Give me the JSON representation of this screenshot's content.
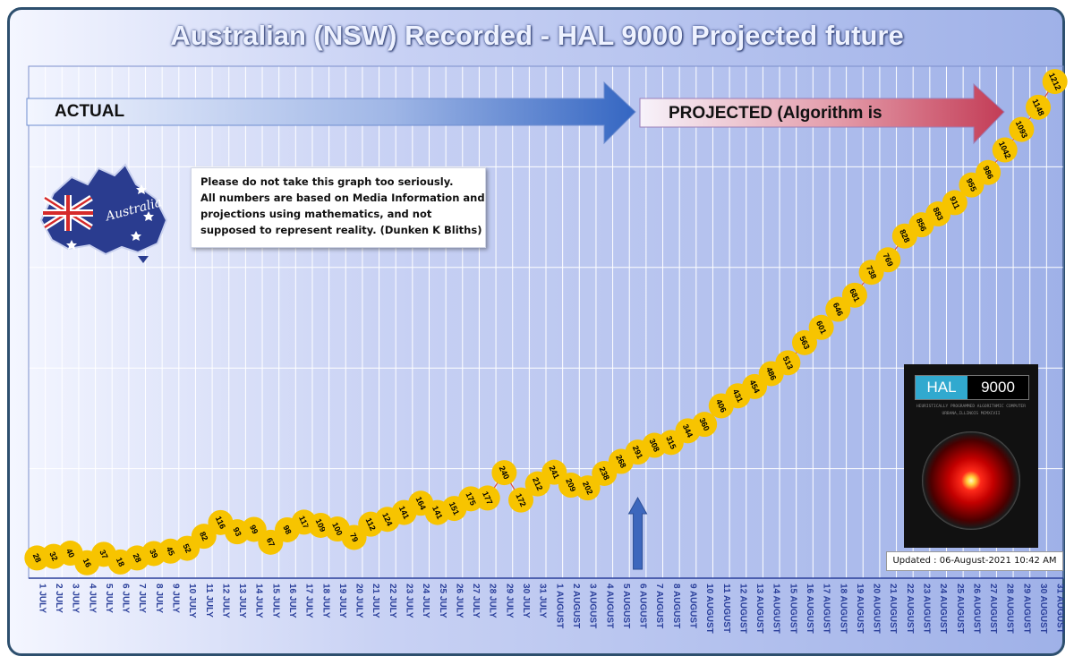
{
  "chart_data": {
    "type": "line",
    "title": "Australian (NSW) Recorded - HAL 9000 Projected future",
    "categories": [
      "1 JULY",
      "2 JULY",
      "3 JULY",
      "4 JULY",
      "5 JULY",
      "6 JULY",
      "7 JULY",
      "8 JULY",
      "9 JULY",
      "10 JULY",
      "11 JULY",
      "12 JULY",
      "13 JULY",
      "14 JULY",
      "15 JULY",
      "16 JULY",
      "17 JULY",
      "18 JULY",
      "19 JULY",
      "20 JULY",
      "21 JULY",
      "22 JULY",
      "23 JULY",
      "24 JULY",
      "25 JULY",
      "26 JULY",
      "27 JULY",
      "28 JULY",
      "29 JULY",
      "30 JULY",
      "31 JULY",
      "1 AUGUST",
      "2 AUGUST",
      "3 AUGUST",
      "4 AUGUST",
      "5 AUGUST",
      "6 AUGUST",
      "7 AUGUST",
      "8 AUGUST",
      "9 AUGUST",
      "10 AUGUST",
      "11 AUGUST",
      "12 AUGUST",
      "13 AUGUST",
      "14 AUGUST",
      "15 AUGUST",
      "16 AUGUST",
      "17 AUGUST",
      "18 AUGUST",
      "19 AUGUST",
      "20 AUGUST",
      "21 AUGUST",
      "22 AUGUST",
      "23 AUGUST",
      "24 AUGUST",
      "25 AUGUST",
      "26 AUGUST",
      "27 AUGUST",
      "28 AUGUST",
      "29 AUGUST",
      "30 AUGUST",
      "31 AUGUST"
    ],
    "x": [
      0,
      0.5,
      1,
      1.5,
      2,
      2.5,
      3,
      3.5,
      4,
      4.5,
      5,
      5.5,
      6,
      6.5,
      7,
      7.5,
      8,
      8.5,
      9,
      9.5,
      10,
      10.5,
      11,
      11.5,
      12,
      12.5,
      13,
      13.5,
      14,
      14.5,
      15,
      15.5,
      16,
      16.5,
      17,
      17.5,
      18,
      18.5,
      19,
      19.5,
      20,
      20.5,
      21,
      21.5,
      22,
      22.5,
      23,
      23.5,
      24,
      24.5,
      25,
      25.5,
      26,
      26.5,
      27,
      27.5,
      28,
      28.5,
      29,
      29.5,
      30,
      30.5,
      31,
      31.5,
      32,
      32.5,
      33,
      33.5,
      34,
      34.5,
      35,
      35.5,
      36,
      36.5,
      37,
      37.5,
      38,
      38.5,
      39,
      39.5,
      40,
      40.5,
      41,
      41.5,
      42,
      42.5,
      43,
      43.5,
      44,
      44.5,
      45,
      45.5,
      46,
      46.5,
      47,
      47.5,
      48,
      48.5,
      49,
      49.5,
      50,
      50.5,
      51,
      51.5,
      52,
      52.5,
      53,
      53.5,
      54,
      54.5,
      55,
      55.5,
      56,
      56.5,
      57,
      57.5,
      58,
      58.5,
      59,
      59.5,
      60,
      60.5,
      61
    ],
    "values": [
      28,
      32,
      40,
      16,
      37,
      18,
      28,
      39,
      45,
      52,
      82,
      116,
      93,
      99,
      67,
      98,
      117,
      109,
      100,
      79,
      112,
      124,
      141,
      164,
      141,
      151,
      175,
      177,
      240,
      172,
      212,
      241,
      209,
      202,
      238,
      268,
      291,
      308,
      315,
      344,
      360,
      406,
      431,
      454,
      486,
      513,
      563,
      601,
      646,
      681,
      738,
      769,
      828,
      856,
      883,
      911,
      955,
      986,
      1042,
      1093,
      1148,
      1212
    ],
    "point_labels": [
      "28",
      "32",
      "40",
      "16",
      "37",
      "18",
      "28",
      "39",
      "45",
      "52",
      "82",
      "116",
      "93",
      "99",
      "67",
      "98",
      "117",
      "109",
      "100",
      "79",
      "112",
      "124",
      "141",
      "164",
      "141",
      "151",
      "175",
      "177",
      "240",
      "172",
      "212",
      "241",
      "209",
      "202",
      "238",
      "268",
      "291",
      "308",
      "315",
      "344",
      "360",
      "406",
      "431",
      "454",
      "486",
      "513",
      "563",
      "601",
      "646",
      "681",
      "738",
      "769",
      "828",
      "856",
      "883",
      "911",
      "955",
      "986",
      "1042",
      "1093",
      "1148",
      "1212"
    ],
    "ylim": [
      0,
      1250
    ],
    "grid": true,
    "xlabel": "",
    "ylabel": "",
    "actual_until": "6 AUGUST",
    "colors": {
      "marker": "#f7c400",
      "frame": "#2d4f6e",
      "actual_arrow": "#3f6fc4",
      "projected_arrow": "#c8485e",
      "grid": "#ffffff"
    }
  },
  "arrows": {
    "actual_label": "ACTUAL",
    "projected_label": "PROJECTED (Algorithm is"
  },
  "note": {
    "lines": [
      "Please do not take this graph too seriously.",
      "All numbers are based on Media Information and",
      "projections using  mathematics, and not",
      "supposed to represent reality.  (Dunken K Bliths)"
    ]
  },
  "hal": {
    "logo_left": "HAL",
    "logo_right": "9000",
    "sub_line1": "HEURISTICALLY PROGRAMMED ALGORITHMIC COMPUTER",
    "sub_line2": "URBANA,ILLINOIS MCMXCVII"
  },
  "map": {
    "wordmark": "Australia"
  },
  "updated": "Updated : 06-August-2021  10:42 AM"
}
